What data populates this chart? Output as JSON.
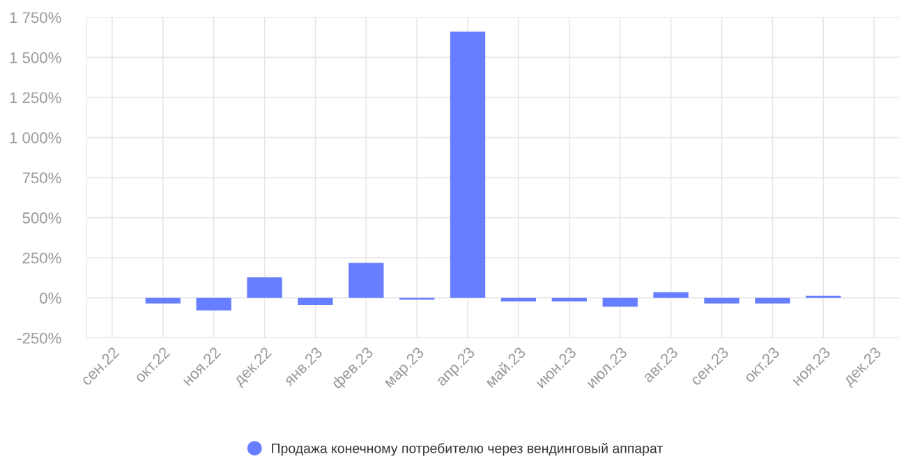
{
  "chart_data": {
    "type": "bar",
    "categories": [
      "сен.22",
      "окт.22",
      "ноя.22",
      "дек.22",
      "янв.23",
      "фев.23",
      "мар.23",
      "апр.23",
      "май.23",
      "июн.23",
      "июл.23",
      "авг.23",
      "сен.23",
      "окт.23",
      "ноя.23",
      "дек.23"
    ],
    "series": [
      {
        "name": "Продажа конечному потребителю через вендинговый аппарат",
        "color": "#667eff",
        "values": [
          null,
          -35,
          -79,
          128,
          -45,
          218,
          -11,
          1660,
          -22,
          -22,
          -56,
          35,
          -35,
          -35,
          13,
          null
        ]
      }
    ],
    "ylim": [
      -250,
      1750
    ],
    "yticks": [
      {
        "value": -250,
        "label": "-250%"
      },
      {
        "value": 0,
        "label": "0%"
      },
      {
        "value": 250,
        "label": "250%"
      },
      {
        "value": 500,
        "label": "500%"
      },
      {
        "value": 750,
        "label": "750%"
      },
      {
        "value": 1000,
        "label": "1 000%"
      },
      {
        "value": 1250,
        "label": "1 250%"
      },
      {
        "value": 1500,
        "label": "1 500%"
      },
      {
        "value": 1750,
        "label": "1 750%"
      }
    ],
    "grid": true,
    "legend": "bottom"
  }
}
